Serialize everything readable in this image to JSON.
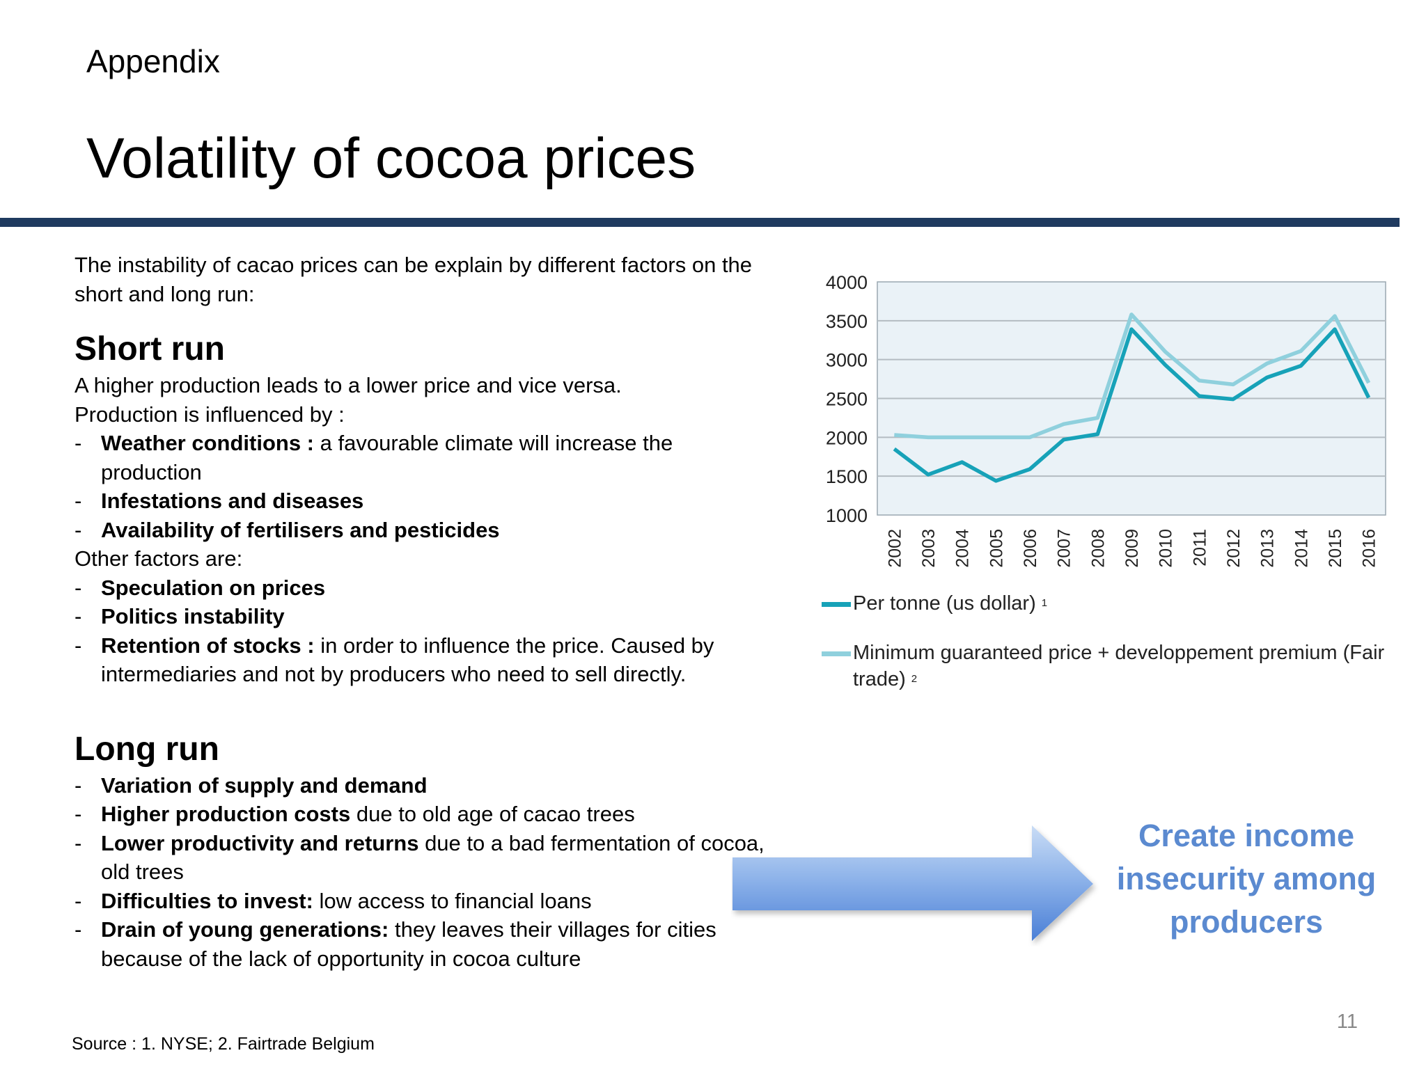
{
  "header": {
    "supertitle": "Appendix",
    "title": "Volatility of cocoa prices"
  },
  "intro": "The instability of cacao prices can be explain by different factors on the short and long run:",
  "short_run": {
    "heading": "Short run",
    "line1": "A higher production leads to a lower price and vice versa.",
    "line2": "Production is influenced by :",
    "items": [
      {
        "bold": "Weather conditions :",
        "text": " a favourable climate will increase the production"
      },
      {
        "bold": "Infestations and diseases",
        "text": ""
      },
      {
        "bold": "Availability of fertilisers and pesticides",
        "text": ""
      }
    ],
    "other_label": "Other factors are:",
    "other_items": [
      {
        "bold": "Speculation on prices",
        "text": ""
      },
      {
        "bold": "Politics instability",
        "text": ""
      },
      {
        "bold": "Retention of stocks :",
        "text": " in order to influence the price. Caused by intermediaries and not by producers who need to sell directly."
      }
    ]
  },
  "long_run": {
    "heading": "Long run",
    "items": [
      {
        "bold": "Variation of supply and demand",
        "text": ""
      },
      {
        "bold": "Higher production costs",
        "text": " due to old age of cacao trees"
      },
      {
        "bold": "Lower productivity and returns",
        "text": " due to a bad fermentation of cocoa, old trees"
      },
      {
        "bold": "Difficulties to invest:",
        "text": " low access to financial loans"
      },
      {
        "bold": "Drain of young generations:",
        "text": " they leaves their villages for cities because of the lack of opportunity in cocoa culture"
      }
    ]
  },
  "callout": "Create income insecurity among producers",
  "page_number": "11",
  "source": "Source : 1. NYSE; 2. Fairtrade Belgium",
  "legend": {
    "series1": {
      "label": "Per tonne (us dollar)",
      "note": "1"
    },
    "series2": {
      "label": "Minimum guaranteed price + developpement premium (Fair trade)",
      "note": "2"
    }
  },
  "colors": {
    "series1": "#17a2b8",
    "series2": "#8fd0dd",
    "header_rule": "#1f3a5f",
    "callout_text": "#5b8ad0",
    "plot_background": "#eaf2f7"
  },
  "chart_data": {
    "type": "line",
    "title": "",
    "xlabel": "",
    "ylabel": "",
    "ylim": [
      1000,
      4000
    ],
    "yticks": [
      "4000",
      "3500",
      "3000",
      "2500",
      "2000",
      "1500",
      "1000"
    ],
    "grid": true,
    "legend_position": "bottom",
    "x": [
      "2002",
      "2003",
      "2004",
      "2005",
      "2006",
      "2007",
      "2008",
      "2009",
      "2010",
      "2011",
      "2012",
      "2013",
      "2014",
      "2015",
      "2016"
    ],
    "series": [
      {
        "name": "Per tonne (us dollar)",
        "values": [
          1850,
          1520,
          1680,
          1440,
          1590,
          1970,
          2040,
          3390,
          2930,
          2530,
          2490,
          2770,
          2920,
          3390,
          2510
        ]
      },
      {
        "name": "Minimum guaranteed price + developpement premium (Fair trade)",
        "values": [
          2030,
          2000,
          2000,
          2000,
          2000,
          2170,
          2250,
          3580,
          3100,
          2730,
          2680,
          2950,
          3110,
          3560,
          2700
        ]
      }
    ]
  }
}
